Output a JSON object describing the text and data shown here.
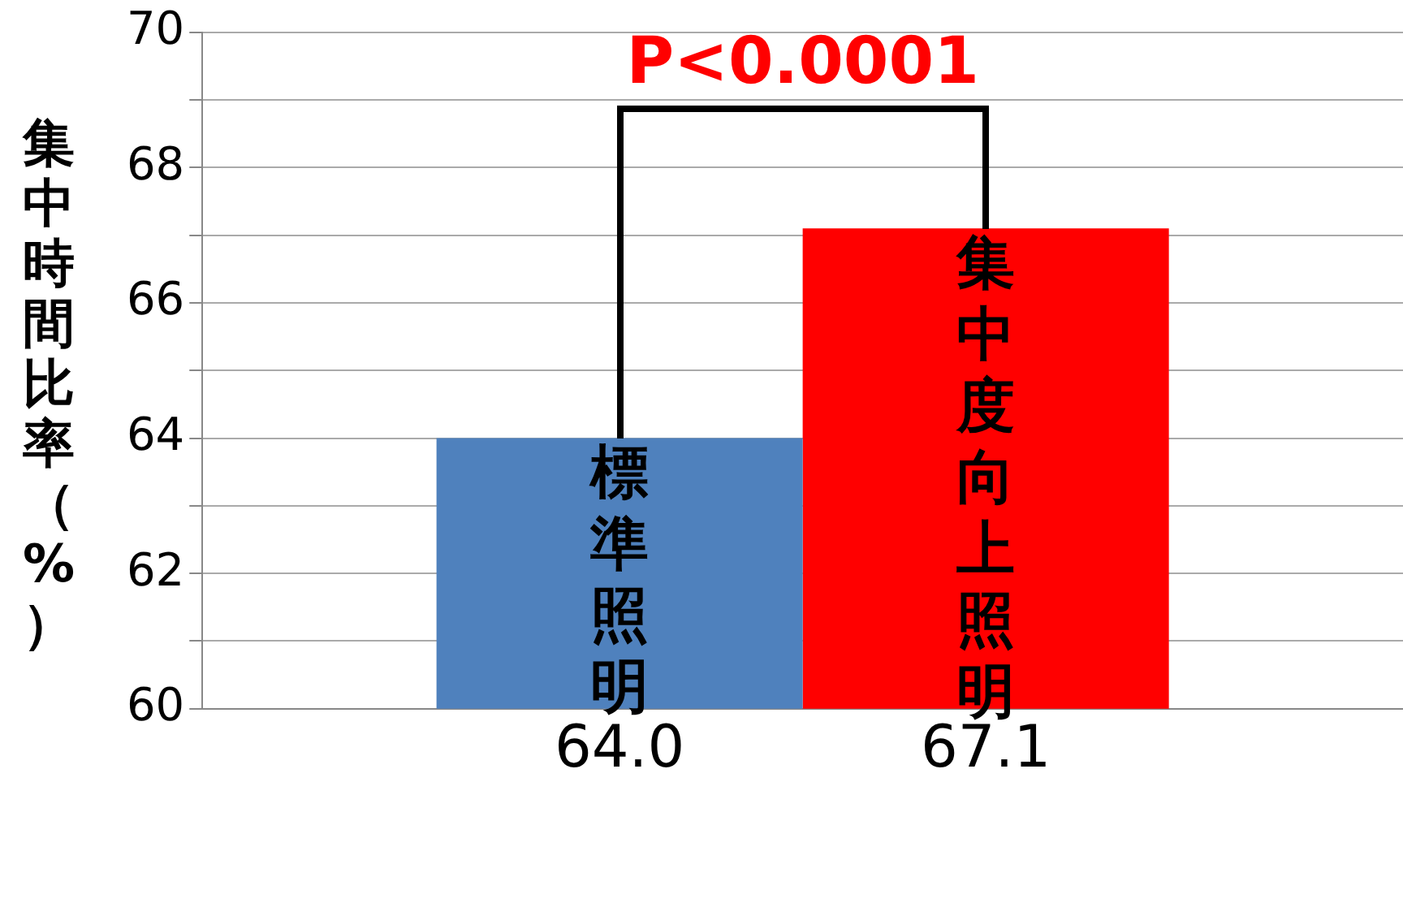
{
  "chart_data": {
    "type": "bar",
    "ylabel": "集中時間比率（%）",
    "categories": [
      null
    ],
    "series": [
      {
        "name": "標準照明",
        "color": "#4f81bd",
        "values": [
          64.0
        ],
        "value_labels": [
          "64.0"
        ]
      },
      {
        "name": "集中度向上照明",
        "color": "#ff0000",
        "values": [
          67.1
        ],
        "value_labels": [
          "67.1"
        ]
      }
    ],
    "ylim": [
      60,
      70
    ],
    "yticks": [
      60,
      {
        "value": 61,
        "label": null
      },
      62,
      {
        "value": 63,
        "label": null
      },
      64,
      {
        "value": 65,
        "label": null
      },
      66,
      {
        "value": 67,
        "label": null
      },
      68,
      {
        "value": 69,
        "label": null
      },
      70
    ],
    "grid": "y",
    "annotations": [
      "P<0.0001"
    ]
  }
}
